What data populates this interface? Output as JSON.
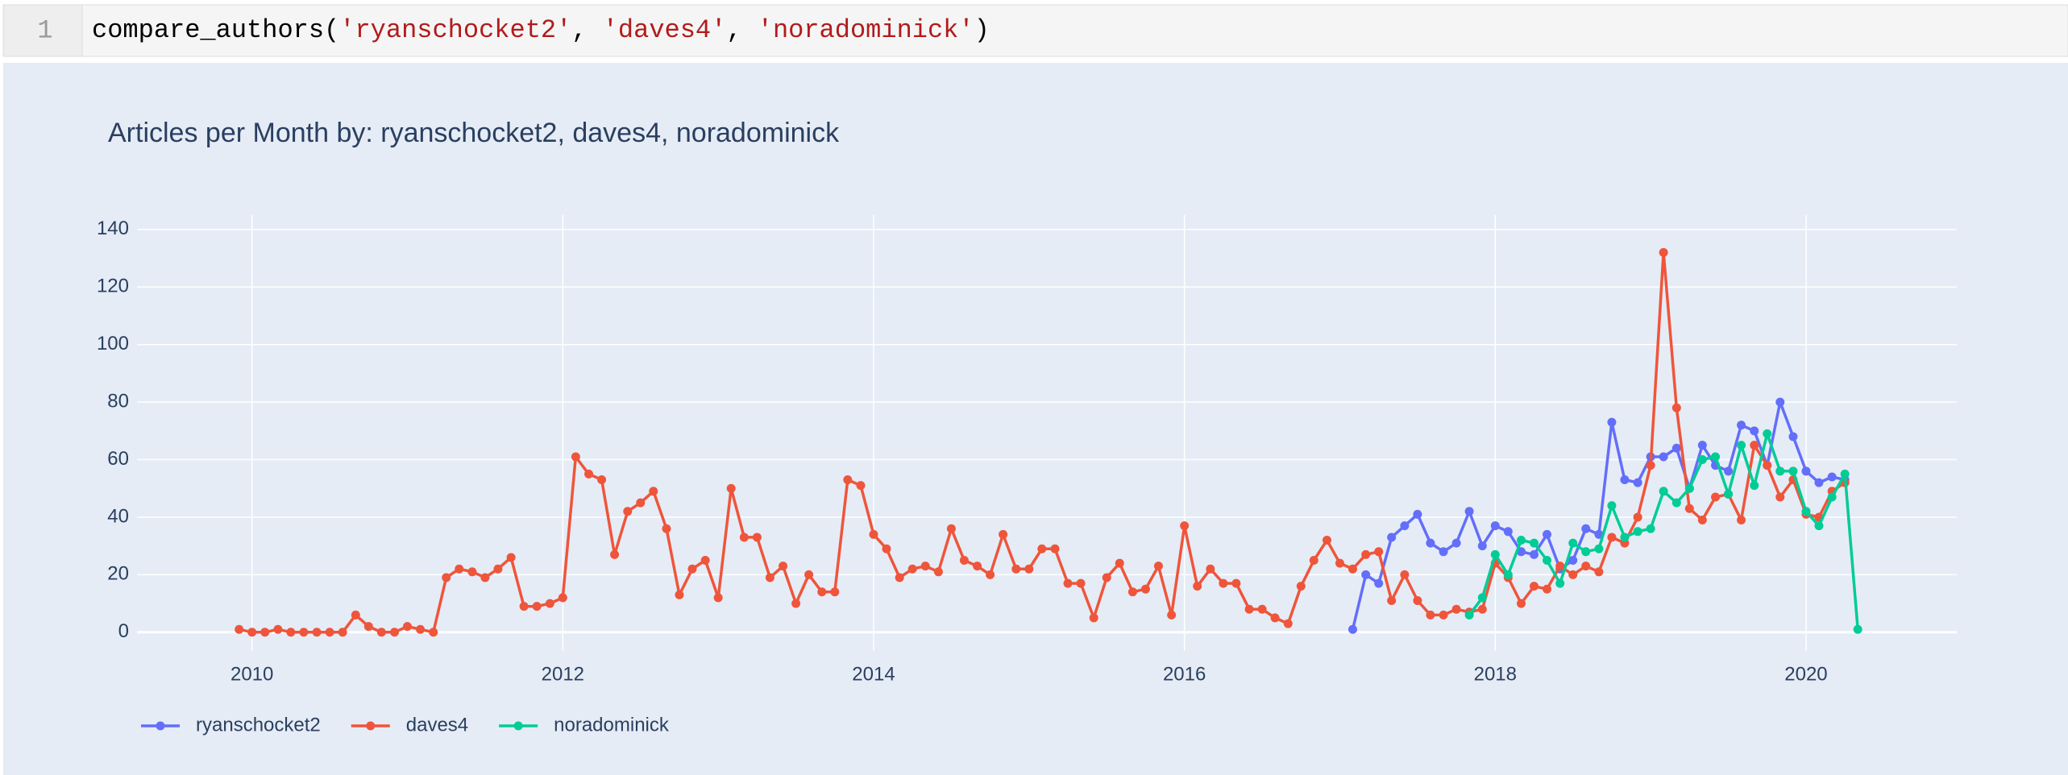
{
  "code_cell": {
    "line_number": "1",
    "tokens": [
      {
        "text": "compare_authors(",
        "color": "#000000"
      },
      {
        "text": "'ryanschocket2'",
        "color": "#b21b1b"
      },
      {
        "text": ", ",
        "color": "#000000"
      },
      {
        "text": "'daves4'",
        "color": "#b21b1b"
      },
      {
        "text": ", ",
        "color": "#000000"
      },
      {
        "text": "'noradominick'",
        "color": "#b21b1b"
      },
      {
        "text": ")",
        "color": "#000000"
      }
    ]
  },
  "chart_data": {
    "type": "line",
    "title": "Articles per Month by: ryanschocket2, daves4, noradominick",
    "x": [
      2009.917,
      2010,
      2010.083,
      2010.167,
      2010.25,
      2010.333,
      2010.417,
      2010.5,
      2010.583,
      2010.667,
      2010.75,
      2010.833,
      2010.917,
      2011,
      2011.083,
      2011.167,
      2011.25,
      2011.333,
      2011.417,
      2011.5,
      2011.583,
      2011.667,
      2011.75,
      2011.833,
      2011.917,
      2012,
      2012.083,
      2012.167,
      2012.25,
      2012.333,
      2012.417,
      2012.5,
      2012.583,
      2012.667,
      2012.75,
      2012.833,
      2012.917,
      2013,
      2013.083,
      2013.167,
      2013.25,
      2013.333,
      2013.417,
      2013.5,
      2013.583,
      2013.667,
      2013.75,
      2013.833,
      2013.917,
      2014,
      2014.083,
      2014.167,
      2014.25,
      2014.333,
      2014.417,
      2014.5,
      2014.583,
      2014.667,
      2014.75,
      2014.833,
      2014.917,
      2015,
      2015.083,
      2015.167,
      2015.25,
      2015.333,
      2015.417,
      2015.5,
      2015.583,
      2015.667,
      2015.75,
      2015.833,
      2015.917,
      2016,
      2016.083,
      2016.167,
      2016.25,
      2016.333,
      2016.417,
      2016.5,
      2016.583,
      2016.667,
      2016.75,
      2016.833,
      2016.917,
      2017,
      2017.083,
      2017.167,
      2017.25,
      2017.333,
      2017.417,
      2017.5,
      2017.583,
      2017.667,
      2017.75,
      2017.833,
      2017.917,
      2018,
      2018.083,
      2018.167,
      2018.25,
      2018.333,
      2018.417,
      2018.5,
      2018.583,
      2018.667,
      2018.75,
      2018.833,
      2018.917,
      2019,
      2019.083,
      2019.167,
      2019.25,
      2019.333,
      2019.417,
      2019.5,
      2019.583,
      2019.667,
      2019.75,
      2019.833,
      2019.917,
      2020,
      2020.083,
      2020.167,
      2020.25,
      2020.333
    ],
    "series": [
      {
        "name": "ryanschocket2",
        "color": "#636efa",
        "values": [
          null,
          null,
          null,
          null,
          null,
          null,
          null,
          null,
          null,
          null,
          null,
          null,
          null,
          null,
          null,
          null,
          null,
          null,
          null,
          null,
          null,
          null,
          null,
          null,
          null,
          null,
          null,
          null,
          null,
          null,
          null,
          null,
          null,
          null,
          null,
          null,
          null,
          null,
          null,
          null,
          null,
          null,
          null,
          null,
          null,
          null,
          null,
          null,
          null,
          null,
          null,
          null,
          null,
          null,
          null,
          null,
          null,
          null,
          null,
          null,
          null,
          null,
          null,
          null,
          null,
          null,
          null,
          null,
          null,
          null,
          null,
          null,
          null,
          null,
          null,
          null,
          null,
          null,
          null,
          null,
          null,
          null,
          null,
          null,
          null,
          null,
          1,
          20,
          17,
          33,
          37,
          41,
          31,
          28,
          31,
          42,
          30,
          37,
          35,
          28,
          27,
          34,
          22,
          25,
          36,
          34,
          73,
          53,
          52,
          61,
          61,
          64,
          50,
          65,
          58,
          56,
          72,
          70,
          58,
          80,
          68,
          56,
          52,
          54,
          53,
          null
        ]
      },
      {
        "name": "daves4",
        "color": "#ef553b",
        "values": [
          1,
          0,
          0,
          1,
          0,
          0,
          0,
          0,
          0,
          6,
          2,
          0,
          0,
          2,
          1,
          0,
          19,
          22,
          21,
          19,
          22,
          26,
          9,
          9,
          10,
          12,
          61,
          55,
          53,
          27,
          42,
          45,
          49,
          36,
          13,
          22,
          25,
          12,
          50,
          33,
          33,
          19,
          23,
          10,
          20,
          14,
          14,
          53,
          51,
          34,
          29,
          19,
          22,
          23,
          21,
          36,
          25,
          23,
          20,
          34,
          22,
          22,
          29,
          29,
          17,
          17,
          5,
          19,
          24,
          14,
          15,
          23,
          6,
          37,
          16,
          22,
          17,
          17,
          8,
          8,
          5,
          3,
          16,
          25,
          32,
          24,
          22,
          27,
          28,
          11,
          20,
          11,
          6,
          6,
          8,
          7,
          8,
          24,
          19,
          10,
          16,
          15,
          23,
          20,
          23,
          21,
          33,
          31,
          40,
          58,
          132,
          78,
          43,
          39,
          47,
          48,
          39,
          65,
          58,
          47,
          53,
          41,
          40,
          49,
          52,
          null
        ]
      },
      {
        "name": "noradominick",
        "color": "#00cc96",
        "values": [
          null,
          null,
          null,
          null,
          null,
          null,
          null,
          null,
          null,
          null,
          null,
          null,
          null,
          null,
          null,
          null,
          null,
          null,
          null,
          null,
          null,
          null,
          null,
          null,
          null,
          null,
          null,
          null,
          null,
          null,
          null,
          null,
          null,
          null,
          null,
          null,
          null,
          null,
          null,
          null,
          null,
          null,
          null,
          null,
          null,
          null,
          null,
          null,
          null,
          null,
          null,
          null,
          null,
          null,
          null,
          null,
          null,
          null,
          null,
          null,
          null,
          null,
          null,
          null,
          null,
          null,
          null,
          null,
          null,
          null,
          null,
          null,
          null,
          null,
          null,
          null,
          null,
          null,
          null,
          null,
          null,
          null,
          null,
          null,
          null,
          null,
          null,
          null,
          null,
          null,
          null,
          null,
          null,
          null,
          null,
          6,
          12,
          27,
          20,
          32,
          31,
          25,
          17,
          31,
          28,
          29,
          44,
          33,
          35,
          36,
          49,
          45,
          50,
          60,
          61,
          48,
          65,
          51,
          69,
          56,
          56,
          42,
          37,
          47,
          55,
          1
        ]
      }
    ],
    "xlim": [
      2009.26,
      2020.97
    ],
    "xticks": [
      2010,
      2012,
      2014,
      2016,
      2018,
      2020
    ],
    "ylim": [
      -6.5,
      145
    ],
    "yticks": [
      0,
      20,
      40,
      60,
      80,
      100,
      120,
      140
    ],
    "grid": true,
    "legend": "bottom-left",
    "background": "#e5ecf6"
  }
}
